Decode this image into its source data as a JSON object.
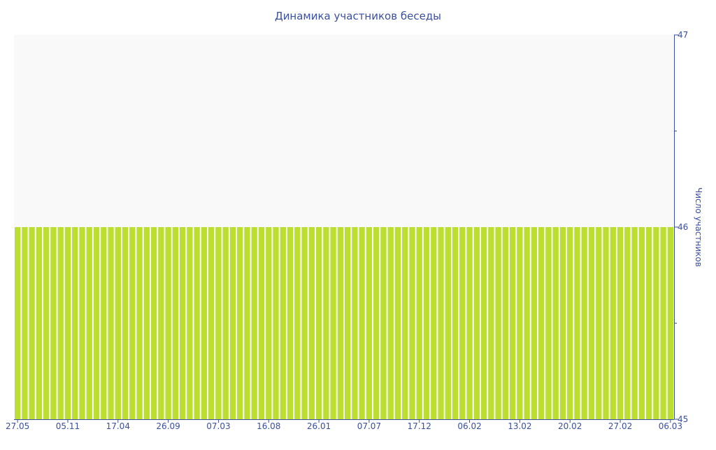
{
  "chart_data": {
    "type": "bar",
    "title": "Динамика участников беседы",
    "ylabel": "Число участников",
    "xlabel": "",
    "ylim": [
      45,
      47
    ],
    "y_ticks": [
      "45",
      "46",
      "47"
    ],
    "y_axis_side": "right",
    "x_tick_labels": [
      "27.05",
      "05.11",
      "17.04",
      "26.09",
      "07.03",
      "16.08",
      "26.01",
      "07.07",
      "17.12",
      "06.02",
      "13.02",
      "20.02",
      "27.02",
      "06.03"
    ],
    "values": [
      46,
      46,
      46,
      46,
      46,
      46,
      46,
      46,
      46,
      46,
      46,
      46,
      46,
      46,
      46,
      46,
      46,
      46,
      46,
      46,
      46,
      46,
      46,
      46,
      46,
      46,
      46,
      46,
      46,
      46,
      46,
      46,
      46,
      46,
      46,
      46,
      46,
      46,
      46,
      46,
      46,
      46,
      46,
      46,
      46,
      46,
      46,
      46,
      46,
      46,
      46,
      46,
      46,
      46,
      46,
      46,
      46,
      46,
      46,
      46,
      46,
      46,
      46,
      46,
      46,
      46,
      46,
      46,
      46,
      46,
      46,
      46,
      46,
      46,
      46,
      46,
      46,
      46,
      46,
      46,
      46,
      46,
      46,
      46,
      46,
      46,
      46,
      46,
      46,
      46,
      46,
      46
    ],
    "grid": false,
    "legend": "none",
    "colors": {
      "bar": "#bbde2f",
      "plot_bg": "#f9f9f9",
      "axis": "#3a4fa0"
    }
  }
}
